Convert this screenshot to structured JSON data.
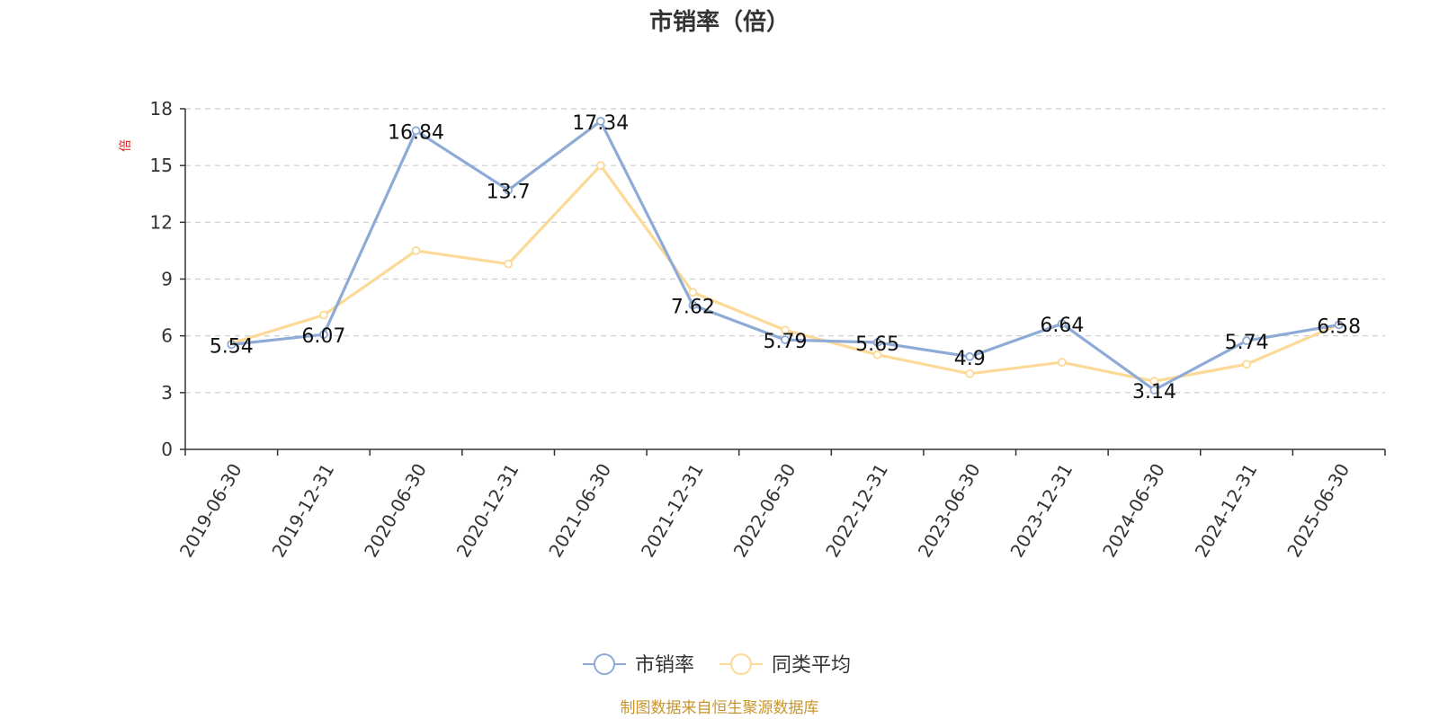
{
  "chart_data": {
    "type": "line",
    "title": "市销率（倍）",
    "ylabel": "倍",
    "xlabel": "",
    "x": [
      "2019-06-30",
      "2019-12-31",
      "2020-06-30",
      "2020-12-31",
      "2021-06-30",
      "2021-12-31",
      "2022-06-30",
      "2022-12-31",
      "2023-06-30",
      "2023-12-31",
      "2024-06-30",
      "2024-12-31",
      "2025-06-30"
    ],
    "ylim": [
      0,
      18
    ],
    "yticks": [
      "0",
      "3",
      "6",
      "9",
      "12",
      "15",
      "18"
    ],
    "grid": true,
    "legend_position": "bottom-center",
    "series": [
      {
        "name": "市销率",
        "color": "#8eaad6",
        "values": [
          5.54,
          6.07,
          16.84,
          13.7,
          17.34,
          7.62,
          5.79,
          5.65,
          4.9,
          6.64,
          3.14,
          5.74,
          6.58
        ],
        "labels": [
          "5.54",
          "6.07",
          "16.84",
          "13.7",
          "17.34",
          "7.62",
          "5.79",
          "5.65",
          "4.9",
          "6.64",
          "3.14",
          "5.74",
          "6.58"
        ]
      },
      {
        "name": "同类平均",
        "color": "#fcd997",
        "values": [
          5.6,
          7.1,
          10.5,
          9.8,
          15.0,
          8.3,
          6.3,
          5.0,
          4.0,
          4.6,
          3.6,
          4.5,
          6.6
        ]
      }
    ]
  },
  "source_note": "制图数据来自恒生聚源数据库"
}
